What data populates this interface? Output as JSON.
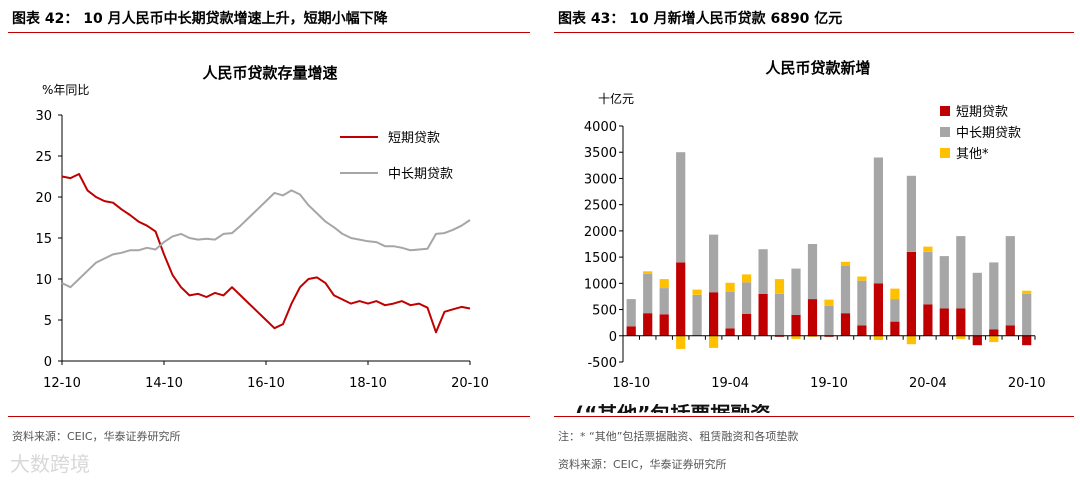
{
  "left": {
    "figure_title": "图表 42：  10 月人民币中长期贷款增速上升，短期小幅下降",
    "source": "资料来源：CEIC，华泰证券研究所"
  },
  "right": {
    "figure_title": "图表 43：  10 月新增人民币贷款 6890 亿元",
    "note": "注：* “其他”包括票据融资、租赁融资和各项垫款",
    "source": "资料来源：CEIC，华泰证券研究所",
    "clipped_text": "(“其他”包括票据融资"
  },
  "watermark": "大数跨境",
  "chart_data": [
    {
      "type": "line",
      "title": "人民币贷款存量增速",
      "ylabel": "%年同比",
      "ylim": [
        0,
        30
      ],
      "yticks": [
        0,
        5,
        10,
        15,
        20,
        25,
        30
      ],
      "xlim": [
        "2012-10",
        "2020-10"
      ],
      "xtick_labels": [
        "12-10",
        "14-10",
        "16-10",
        "18-10",
        "20-10"
      ],
      "grid": false,
      "legend_position": "top-right",
      "colors": {
        "短期贷款": "#c00000",
        "中长期贷款": "#a6a6a6"
      },
      "series": [
        {
          "name": "短期贷款",
          "points": [
            [
              "2012-10",
              22.5
            ],
            [
              "2012-12",
              22.3
            ],
            [
              "2013-02",
              22.8
            ],
            [
              "2013-04",
              20.8
            ],
            [
              "2013-06",
              20.0
            ],
            [
              "2013-08",
              19.5
            ],
            [
              "2013-10",
              19.3
            ],
            [
              "2013-12",
              18.5
            ],
            [
              "2014-02",
              17.8
            ],
            [
              "2014-04",
              17.0
            ],
            [
              "2014-06",
              16.5
            ],
            [
              "2014-08",
              15.8
            ],
            [
              "2014-10",
              13.0
            ],
            [
              "2014-12",
              10.5
            ],
            [
              "2015-02",
              9.0
            ],
            [
              "2015-04",
              8.0
            ],
            [
              "2015-06",
              8.2
            ],
            [
              "2015-08",
              7.8
            ],
            [
              "2015-10",
              8.3
            ],
            [
              "2015-12",
              8.0
            ],
            [
              "2016-02",
              9.0
            ],
            [
              "2016-04",
              8.0
            ],
            [
              "2016-06",
              7.0
            ],
            [
              "2016-08",
              6.0
            ],
            [
              "2016-10",
              5.0
            ],
            [
              "2016-12",
              4.0
            ],
            [
              "2017-02",
              4.5
            ],
            [
              "2017-04",
              7.0
            ],
            [
              "2017-06",
              9.0
            ],
            [
              "2017-08",
              10.0
            ],
            [
              "2017-10",
              10.2
            ],
            [
              "2017-12",
              9.5
            ],
            [
              "2018-02",
              8.0
            ],
            [
              "2018-04",
              7.5
            ],
            [
              "2018-06",
              7.0
            ],
            [
              "2018-08",
              7.3
            ],
            [
              "2018-10",
              7.0
            ],
            [
              "2018-12",
              7.3
            ],
            [
              "2019-02",
              6.8
            ],
            [
              "2019-04",
              7.0
            ],
            [
              "2019-06",
              7.3
            ],
            [
              "2019-08",
              6.8
            ],
            [
              "2019-10",
              7.0
            ],
            [
              "2019-12",
              6.5
            ],
            [
              "2020-02",
              3.5
            ],
            [
              "2020-04",
              6.0
            ],
            [
              "2020-06",
              6.3
            ],
            [
              "2020-08",
              6.6
            ],
            [
              "2020-10",
              6.4
            ]
          ]
        },
        {
          "name": "中长期贷款",
          "points": [
            [
              "2012-10",
              9.5
            ],
            [
              "2012-12",
              9.0
            ],
            [
              "2013-02",
              10.0
            ],
            [
              "2013-04",
              11.0
            ],
            [
              "2013-06",
              12.0
            ],
            [
              "2013-08",
              12.5
            ],
            [
              "2013-10",
              13.0
            ],
            [
              "2013-12",
              13.2
            ],
            [
              "2014-02",
              13.5
            ],
            [
              "2014-04",
              13.5
            ],
            [
              "2014-06",
              13.8
            ],
            [
              "2014-08",
              13.6
            ],
            [
              "2014-10",
              14.5
            ],
            [
              "2014-12",
              15.2
            ],
            [
              "2015-02",
              15.5
            ],
            [
              "2015-04",
              15.0
            ],
            [
              "2015-06",
              14.8
            ],
            [
              "2015-08",
              14.9
            ],
            [
              "2015-10",
              14.8
            ],
            [
              "2015-12",
              15.5
            ],
            [
              "2016-02",
              15.6
            ],
            [
              "2016-04",
              16.5
            ],
            [
              "2016-06",
              17.5
            ],
            [
              "2016-08",
              18.5
            ],
            [
              "2016-10",
              19.5
            ],
            [
              "2016-12",
              20.5
            ],
            [
              "2017-02",
              20.2
            ],
            [
              "2017-04",
              20.8
            ],
            [
              "2017-06",
              20.3
            ],
            [
              "2017-08",
              19.0
            ],
            [
              "2017-10",
              18.0
            ],
            [
              "2017-12",
              17.0
            ],
            [
              "2018-02",
              16.3
            ],
            [
              "2018-04",
              15.5
            ],
            [
              "2018-06",
              15.0
            ],
            [
              "2018-08",
              14.8
            ],
            [
              "2018-10",
              14.6
            ],
            [
              "2018-12",
              14.5
            ],
            [
              "2019-02",
              14.0
            ],
            [
              "2019-04",
              14.0
            ],
            [
              "2019-06",
              13.8
            ],
            [
              "2019-08",
              13.5
            ],
            [
              "2019-10",
              13.6
            ],
            [
              "2019-12",
              13.7
            ],
            [
              "2020-02",
              15.5
            ],
            [
              "2020-04",
              15.6
            ],
            [
              "2020-06",
              16.0
            ],
            [
              "2020-08",
              16.5
            ],
            [
              "2020-10",
              17.2
            ]
          ]
        }
      ]
    },
    {
      "type": "bar",
      "stacked": true,
      "title": "人民币贷款新增",
      "ylabel": "十亿元",
      "ylim": [
        -500,
        4000
      ],
      "yticks": [
        -500,
        0,
        500,
        1000,
        1500,
        2000,
        2500,
        3000,
        3500,
        4000
      ],
      "grid": false,
      "legend_position": "top-right",
      "xtick_labels": [
        "18-10",
        "19-04",
        "19-10",
        "20-04",
        "20-10"
      ],
      "categories": [
        "2018-10",
        "2018-11",
        "2018-12",
        "2019-01",
        "2019-02",
        "2019-03",
        "2019-04",
        "2019-05",
        "2019-06",
        "2019-07",
        "2019-08",
        "2019-09",
        "2019-10",
        "2019-11",
        "2019-12",
        "2020-01",
        "2020-02",
        "2020-03",
        "2020-04",
        "2020-05",
        "2020-06",
        "2020-07",
        "2020-08",
        "2020-09",
        "2020-10"
      ],
      "colors": {
        "短期贷款": "#c00000",
        "中长期贷款": "#a6a6a6",
        "其他*": "#ffc000"
      },
      "series": [
        {
          "name": "短期贷款",
          "values": [
            180,
            430,
            410,
            1400,
            0,
            830,
            140,
            420,
            800,
            -20,
            400,
            700,
            -20,
            430,
            200,
            1000,
            270,
            1600,
            600,
            520,
            520,
            -180,
            120,
            200,
            -180
          ]
        },
        {
          "name": "中长期贷款",
          "values": [
            520,
            750,
            500,
            2100,
            780,
            1100,
            700,
            600,
            850,
            800,
            880,
            1050,
            570,
            900,
            850,
            2400,
            430,
            1450,
            1000,
            1000,
            1380,
            1200,
            1280,
            1700,
            800
          ]
        },
        {
          "name": "其他*",
          "values": [
            0,
            50,
            170,
            -250,
            100,
            -230,
            170,
            150,
            0,
            280,
            -60,
            -20,
            120,
            80,
            80,
            -80,
            200,
            -160,
            100,
            0,
            -60,
            0,
            -120,
            0,
            60
          ]
        }
      ]
    }
  ]
}
